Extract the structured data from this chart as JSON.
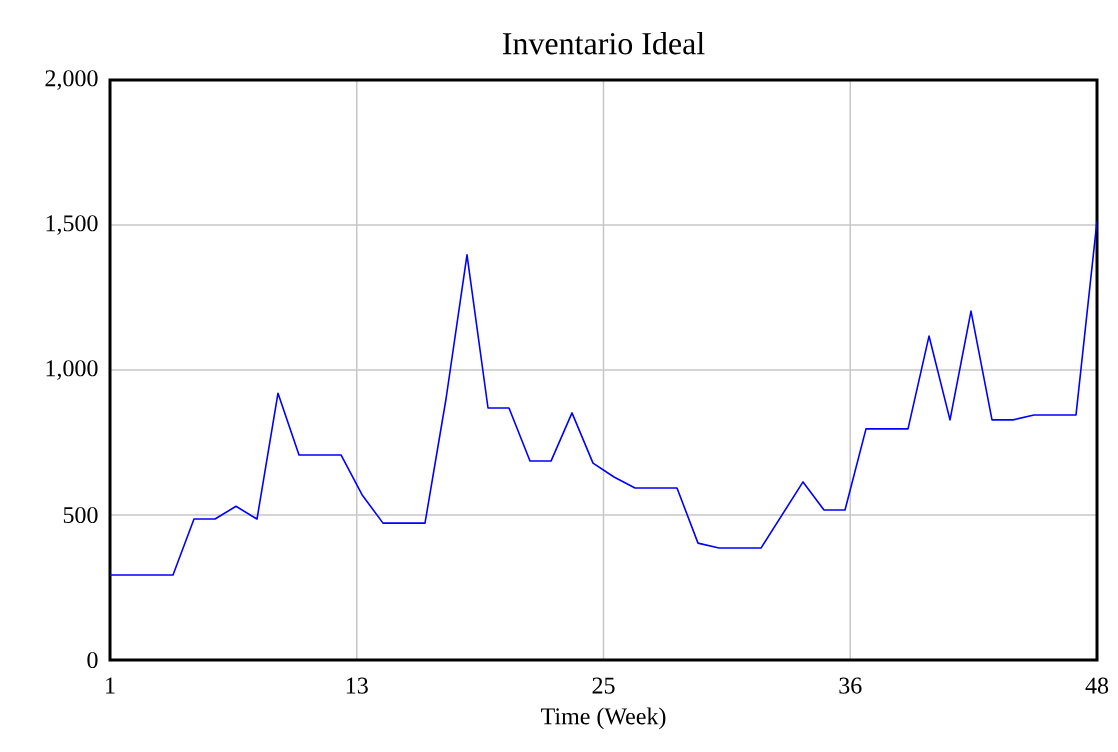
{
  "chart_data": {
    "type": "line",
    "title": "Inventario Ideal",
    "xlabel": "Time (Week)",
    "x": [
      1,
      2,
      3,
      4,
      5,
      6,
      7,
      8,
      9,
      10,
      11,
      12,
      13,
      14,
      15,
      16,
      17,
      18,
      19,
      20,
      21,
      22,
      23,
      24,
      25,
      26,
      27,
      28,
      29,
      30,
      31,
      32,
      33,
      34,
      35,
      36,
      37,
      38,
      39,
      40,
      41,
      42,
      43,
      44,
      45,
      46,
      47,
      48
    ],
    "series": [
      {
        "color": "#0000ff",
        "values": [
          293,
          293,
          293,
          293,
          486,
          486,
          530,
          486,
          920,
          707,
          707,
          707,
          570,
          472,
          472,
          472,
          900,
          1397,
          869,
          869,
          686,
          686,
          852,
          679,
          631,
          593,
          593,
          593,
          403,
          386,
          386,
          386,
          500,
          614,
          517,
          517,
          797,
          797,
          797,
          1117,
          828,
          1203,
          828,
          828,
          845,
          845,
          845,
          1514
        ]
      }
    ],
    "xlim": [
      1,
      48
    ],
    "ylim": [
      0,
      2000
    ],
    "xticks": [
      1,
      {
        "value": 12.75,
        "label": "13"
      },
      {
        "value": 24.5,
        "label": "25"
      },
      {
        "value": 36.25,
        "label": "36"
      },
      48
    ],
    "yticks": [
      0,
      {
        "value": 500,
        "label": "500"
      },
      {
        "value": 1000,
        "label": "1,000"
      },
      {
        "value": 1500,
        "label": "1,500"
      },
      {
        "value": 2000,
        "label": "2,000"
      }
    ],
    "grid": true,
    "marker": "none",
    "line_style": "solid"
  }
}
